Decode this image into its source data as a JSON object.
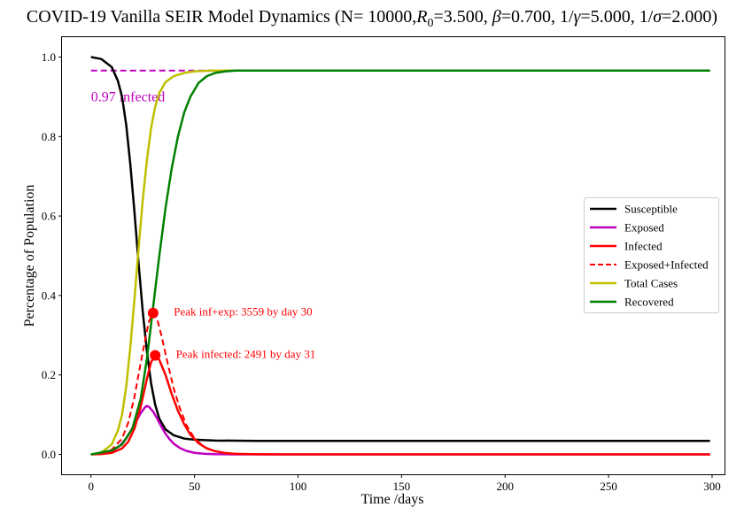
{
  "chart_data": {
    "type": "line",
    "title_prefix": "COVID-19 Vanilla SEIR Model Dynamics (N= 10000,",
    "title_params": {
      "R0_symbol": "R",
      "R0_subscript": "0",
      "R0_value": "=3.500, ",
      "beta_symbol": "β",
      "beta_value": "=0.700, 1/",
      "gamma_symbol": "γ",
      "gamma_value": "=5.000, 1/",
      "sigma_symbol": "σ",
      "sigma_value": "=2.000)"
    },
    "xlabel": "Time /days",
    "ylabel": "Percentage of Population",
    "xlim": [
      -14,
      306
    ],
    "ylim": [
      -0.05,
      1.05
    ],
    "xticks": [
      0,
      50,
      100,
      150,
      200,
      250,
      300
    ],
    "yticks": [
      0.0,
      0.2,
      0.4,
      0.6,
      0.8,
      1.0
    ],
    "xtick_labels": [
      "0",
      "50",
      "100",
      "150",
      "200",
      "250",
      "300"
    ],
    "ytick_labels": [
      "0.0",
      "0.2",
      "0.4",
      "0.6",
      "0.8",
      "1.0"
    ],
    "grid": false,
    "legend_position": "center-right",
    "series": [
      {
        "name": "Susceptible",
        "color": "#000000",
        "dash": "solid",
        "x": [
          0,
          5,
          10,
          13,
          15,
          17,
          19,
          21,
          23,
          25,
          27,
          29,
          31,
          33,
          36,
          40,
          45,
          50,
          60,
          80,
          100,
          150,
          200,
          250,
          299
        ],
        "y": [
          1.0,
          0.995,
          0.975,
          0.94,
          0.9,
          0.83,
          0.73,
          0.61,
          0.48,
          0.36,
          0.26,
          0.18,
          0.125,
          0.09,
          0.063,
          0.048,
          0.04,
          0.037,
          0.035,
          0.034,
          0.034,
          0.034,
          0.034,
          0.034,
          0.034
        ]
      },
      {
        "name": "Exposed",
        "color": "#bf00bf",
        "dash": "solid",
        "x": [
          0,
          5,
          10,
          14,
          17,
          20,
          22,
          24,
          26,
          27,
          28,
          30,
          32,
          34,
          36,
          38,
          40,
          43,
          46,
          50,
          55,
          60,
          70,
          80,
          100,
          150,
          200,
          250,
          299
        ],
        "y": [
          0.0,
          0.002,
          0.008,
          0.022,
          0.04,
          0.066,
          0.085,
          0.104,
          0.118,
          0.122,
          0.12,
          0.108,
          0.09,
          0.07,
          0.052,
          0.038,
          0.027,
          0.016,
          0.009,
          0.004,
          0.0015,
          0.0006,
          0.0001,
          0.0,
          0.0,
          0.0,
          0.0,
          0.0,
          0.0
        ]
      },
      {
        "name": "Infected",
        "color": "#ff0000",
        "dash": "solid",
        "x": [
          0,
          5,
          10,
          15,
          18,
          21,
          24,
          27,
          29,
          31,
          33,
          36,
          39,
          42,
          45,
          48,
          52,
          56,
          60,
          65,
          70,
          80,
          90,
          100,
          150,
          200,
          250,
          299
        ],
        "y": [
          0.0,
          0.001,
          0.004,
          0.015,
          0.032,
          0.065,
          0.12,
          0.19,
          0.232,
          0.249,
          0.238,
          0.2,
          0.152,
          0.11,
          0.076,
          0.05,
          0.028,
          0.015,
          0.008,
          0.0035,
          0.0015,
          0.0003,
          0.0,
          0.0,
          0.0,
          0.0,
          0.0,
          0.0
        ]
      },
      {
        "name": "Exposed+Infected",
        "color": "#ff0000",
        "dash": "dashed",
        "x": [
          0,
          5,
          10,
          15,
          18,
          21,
          24,
          27,
          28,
          30,
          32,
          34,
          37,
          40,
          43,
          46,
          50,
          55,
          60,
          65,
          70,
          80,
          100,
          150,
          200,
          250,
          299
        ],
        "y": [
          0.0,
          0.003,
          0.012,
          0.04,
          0.08,
          0.145,
          0.23,
          0.31,
          0.335,
          0.356,
          0.34,
          0.3,
          0.23,
          0.165,
          0.115,
          0.075,
          0.04,
          0.018,
          0.008,
          0.0035,
          0.0015,
          0.0003,
          0.0,
          0.0,
          0.0,
          0.0,
          0.0
        ]
      },
      {
        "name": "Total Cases",
        "color": "#bfbf00",
        "dash": "solid",
        "x": [
          0,
          5,
          10,
          13,
          15,
          17,
          19,
          21,
          23,
          25,
          27,
          29,
          31,
          33,
          36,
          40,
          45,
          50,
          55,
          60,
          70,
          80,
          100,
          150,
          200,
          250,
          299
        ],
        "y": [
          0.0,
          0.005,
          0.025,
          0.06,
          0.1,
          0.17,
          0.27,
          0.39,
          0.52,
          0.64,
          0.74,
          0.82,
          0.875,
          0.91,
          0.937,
          0.952,
          0.96,
          0.964,
          0.965,
          0.966,
          0.966,
          0.966,
          0.966,
          0.966,
          0.966,
          0.966,
          0.966
        ]
      },
      {
        "name": "Recovered",
        "color": "#008000",
        "dash": "solid",
        "x": [
          0,
          10,
          15,
          20,
          24,
          27,
          30,
          33,
          36,
          39,
          42,
          45,
          48,
          52,
          56,
          60,
          65,
          70,
          80,
          90,
          100,
          150,
          200,
          250,
          299
        ],
        "y": [
          0.0,
          0.01,
          0.025,
          0.065,
          0.14,
          0.24,
          0.37,
          0.5,
          0.62,
          0.72,
          0.8,
          0.86,
          0.9,
          0.935,
          0.952,
          0.96,
          0.964,
          0.966,
          0.966,
          0.966,
          0.966,
          0.966,
          0.966,
          0.966,
          0.966
        ]
      }
    ],
    "reference_line": {
      "y": 0.966,
      "x_range": [
        0,
        299
      ],
      "color": "#bf00bf",
      "dash": "dashed",
      "label": "0.97 infected",
      "label_x": 0,
      "label_y": 0.9
    },
    "markers": [
      {
        "x": 30,
        "y": 0.3559,
        "color": "#ff0000"
      },
      {
        "x": 31,
        "y": 0.2491,
        "color": "#ff0000"
      }
    ],
    "annotations": [
      {
        "text": "Peak inf+exp: 3559 by day 30",
        "x": 40,
        "y": 0.3559,
        "color": "#ff0000"
      },
      {
        "text": "Peak infected: 2491 by day 31",
        "x": 41,
        "y": 0.2491,
        "color": "#ff0000"
      }
    ]
  }
}
